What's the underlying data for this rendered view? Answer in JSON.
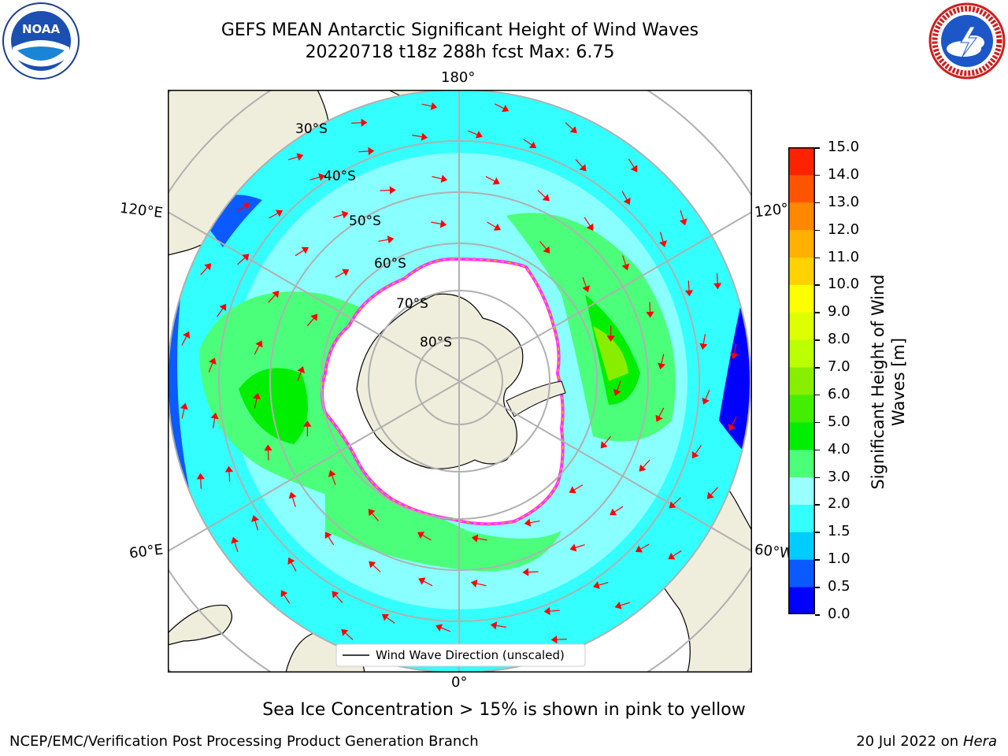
{
  "header": {
    "title_line1": "GEFS MEAN Antarctic Significant Height of Wind Waves",
    "title_line2": "20220718 t18z 288h fcst   Max: 6.75"
  },
  "logos": {
    "left": "noaa-logo",
    "left_text": "NOAA",
    "right": "nws-logo",
    "right_text": "NATIONAL WEATHER SERVICE"
  },
  "map": {
    "projection": "south-polar-stereographic",
    "lon_labels": {
      "top": "180°",
      "bottom": "0°",
      "left_upper": "120°E",
      "left_lower": "60°E",
      "right_upper": "120°W",
      "right_lower": "60°W"
    },
    "lat_labels": [
      "30°S",
      "40°S",
      "50°S",
      "60°S",
      "70°S",
      "80°S"
    ],
    "legend_label": "Wind Wave Direction (unscaled)"
  },
  "colorbar": {
    "title_line1": "Significant Height of Wind",
    "title_line2": "Waves [m]",
    "ticks": [
      "0.0",
      "0.5",
      "1.0",
      "1.5",
      "2.0",
      "3.0",
      "4.0",
      "5.0",
      "6.0",
      "7.0",
      "8.0",
      "9.0",
      "10.0",
      "11.0",
      "12.0",
      "13.0",
      "14.0",
      "15.0"
    ],
    "colors": [
      "#0000ff",
      "#0a5aff",
      "#00ccff",
      "#33ffff",
      "#99ffff",
      "#4cff7a",
      "#00ee00",
      "#44ee00",
      "#88ee00",
      "#bbff00",
      "#ddff00",
      "#ffff00",
      "#ffd200",
      "#ffb000",
      "#ff8800",
      "#ff5500",
      "#ff2200"
    ]
  },
  "caption": "Sea Ice Concentration > 15% is shown in pink to yellow",
  "footer": {
    "left": "NCEP/EMC/Verification Post Processing Product Generation Branch",
    "right_date": "20 Jul 2022 on ",
    "right_machine": "Hera"
  }
}
